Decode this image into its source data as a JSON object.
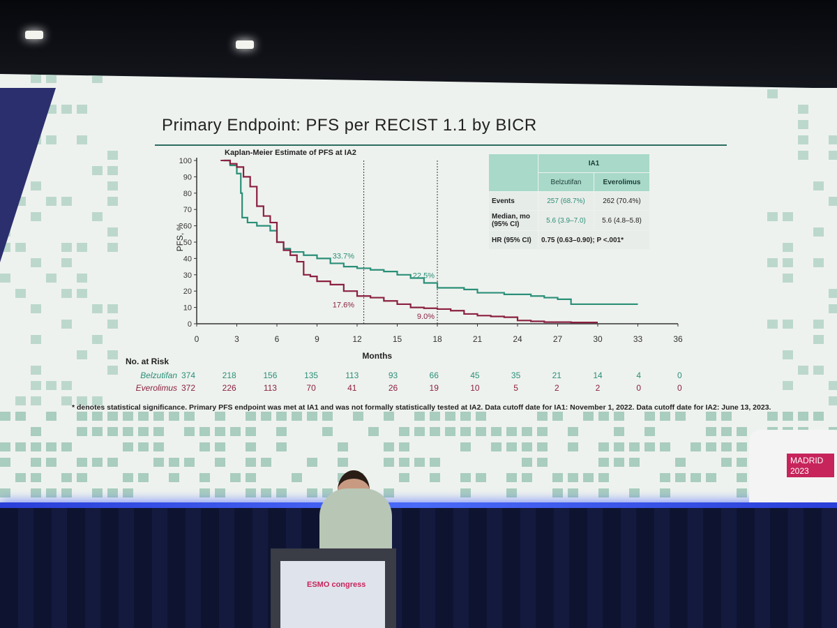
{
  "slide": {
    "title": "Primary Endpoint: PFS per RECIST 1.1 by BICR",
    "footnote": "* denotes statistical significance. Primary PFS endpoint was met at IA1 and was not formally statistically tested at IA2. Data cutoff date for IA1: November 1, 2022. Data cutoff date for IA2: June 13, 2023.",
    "badge": {
      "line1": "MADRID",
      "line2": "2023"
    },
    "podium_logo": "ESMO congress"
  },
  "table": {
    "header_group": "IA1",
    "col1": "Belzutifan",
    "col2": "Everolimus",
    "rows": [
      {
        "label": "Events",
        "v1": "257 (68.7%)",
        "v2": "262 (70.4%)"
      },
      {
        "label": "Median, mo (95% CI)",
        "v1": "5.6 (3.9–7.0)",
        "v2": "5.6 (4.8–5.8)"
      }
    ],
    "hr_label": "HR (95% CI)",
    "hr_value": "0.75 (0.63–0.90); P <.001*"
  },
  "chart_data": {
    "type": "line",
    "title": "Kaplan-Meier Estimate of PFS at IA2",
    "xlabel": "Months",
    "ylabel": "PFS, %",
    "xlim": [
      0,
      36
    ],
    "ylim": [
      0,
      100
    ],
    "xticks": [
      0,
      3,
      6,
      9,
      12,
      15,
      18,
      21,
      24,
      27,
      30,
      33,
      36
    ],
    "yticks": [
      0,
      10,
      20,
      30,
      40,
      50,
      60,
      70,
      80,
      90,
      100
    ],
    "vlines": [
      12.5,
      18
    ],
    "colors": {
      "belzutifan": "#2a8f78",
      "everolimus": "#8a2040"
    },
    "series": [
      {
        "name": "Belzutifan",
        "x": [
          2.0,
          2.5,
          3.0,
          3.3,
          3.4,
          3.8,
          4.5,
          5.5,
          6.0,
          6.5,
          7.0,
          8.0,
          9.0,
          10.0,
          11.0,
          12.0,
          13.0,
          14.0,
          15.0,
          16.0,
          17.0,
          18.0,
          19.0,
          20.0,
          21.0,
          22.0,
          23.0,
          24.0,
          25.0,
          26.0,
          27.0,
          28.0,
          30.0,
          32.0,
          33.0
        ],
        "y": [
          100,
          97,
          92,
          80,
          65,
          62,
          60,
          57,
          50,
          46,
          44,
          42,
          40,
          37,
          35,
          34,
          33,
          32,
          30,
          28,
          25,
          22,
          22,
          21,
          19,
          19,
          18,
          18,
          17,
          16,
          15,
          12,
          12,
          12,
          12
        ]
      },
      {
        "name": "Everolimus",
        "x": [
          2.0,
          2.5,
          3.0,
          3.5,
          4.0,
          4.5,
          5.0,
          5.5,
          6.0,
          6.5,
          7.0,
          7.5,
          8.0,
          8.5,
          9.0,
          10.0,
          11.0,
          12.0,
          13.0,
          14.0,
          15.0,
          16.0,
          17.0,
          18.0,
          19.0,
          20.0,
          21.0,
          22.0,
          23.0,
          24.0,
          25.0,
          26.0,
          28.0,
          30.0
        ],
        "y": [
          100,
          98,
          96,
          90,
          84,
          72,
          66,
          62,
          50,
          45,
          42,
          38,
          30,
          29,
          26,
          24,
          20,
          17,
          16,
          14,
          12,
          10,
          9.5,
          9,
          8,
          6,
          5,
          4.5,
          4,
          2,
          1.5,
          1,
          0.8,
          0.8
        ]
      }
    ],
    "annotations": [
      {
        "text": "33.7%",
        "x": 12,
        "y": 40,
        "series": "Belzutifan"
      },
      {
        "text": "22.5%",
        "x": 18,
        "y": 28,
        "series": "Belzutifan"
      },
      {
        "text": "17.6%",
        "x": 12,
        "y": 10,
        "series": "Everolimus"
      },
      {
        "text": "9.0%",
        "x": 18,
        "y": 3,
        "series": "Everolimus"
      }
    ],
    "risk_table": {
      "header": "No. at Risk",
      "rows": [
        {
          "name": "Belzutifan",
          "values": [
            "374",
            "218",
            "156",
            "135",
            "113",
            "93",
            "66",
            "45",
            "35",
            "21",
            "14",
            "4",
            "0"
          ]
        },
        {
          "name": "Everolimus",
          "values": [
            "372",
            "226",
            "113",
            "70",
            "41",
            "26",
            "19",
            "10",
            "5",
            "2",
            "2",
            "0",
            "0"
          ]
        }
      ]
    }
  }
}
